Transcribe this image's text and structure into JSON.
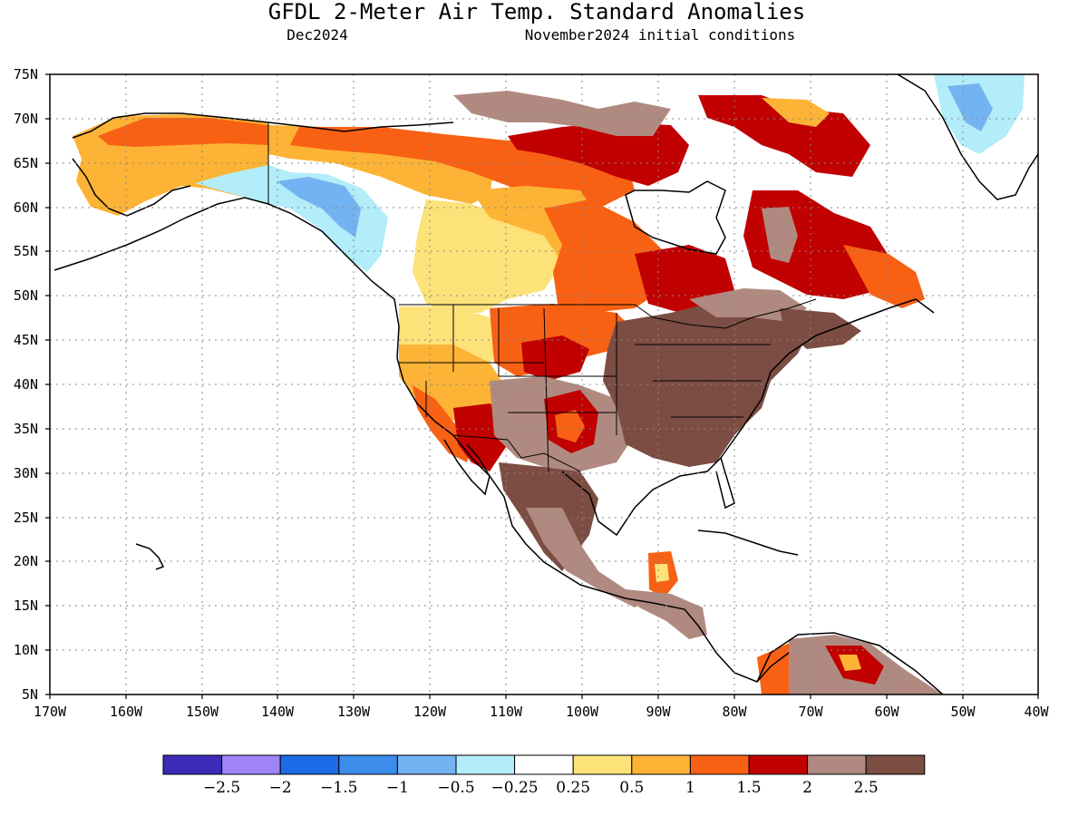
{
  "header": {
    "title": "GFDL 2-Meter Air Temp. Standard Anomalies",
    "month": "Dec2024",
    "initial_conditions": "November2024 initial conditions"
  },
  "map": {
    "lon_range": [
      -170,
      -40
    ],
    "lat_range": [
      5,
      75
    ],
    "lat_labels": [
      "75N",
      "70N",
      "65N",
      "60N",
      "55N",
      "50N",
      "45N",
      "40N",
      "35N",
      "30N",
      "25N",
      "20N",
      "15N",
      "10N",
      "5N"
    ],
    "lon_labels": [
      "170W",
      "160W",
      "150W",
      "140W",
      "130W",
      "120W",
      "110W",
      "100W",
      "90W",
      "80W",
      "70W",
      "60W",
      "50W",
      "40W"
    ],
    "gridlines": "dotted"
  },
  "legend": {
    "bins": [
      {
        "color": "#3c2ab9"
      },
      {
        "color": "#a083f6"
      },
      {
        "color": "#1d6be6"
      },
      {
        "color": "#3b8de9"
      },
      {
        "color": "#74b3f2"
      },
      {
        "color": "#b2edf9"
      },
      {
        "color": "#ffffff"
      },
      {
        "color": "#fde27a"
      },
      {
        "color": "#fdb335"
      },
      {
        "color": "#f86114"
      },
      {
        "color": "#c10000"
      },
      {
        "color": "#b08a80"
      },
      {
        "color": "#7c4d43"
      }
    ],
    "labels": [
      "-2.5",
      "-2",
      "-1.5",
      "-1",
      "-0.5",
      "-0.25",
      "0.25",
      "0.5",
      "1",
      "1.5",
      "2",
      "2.5"
    ]
  }
}
